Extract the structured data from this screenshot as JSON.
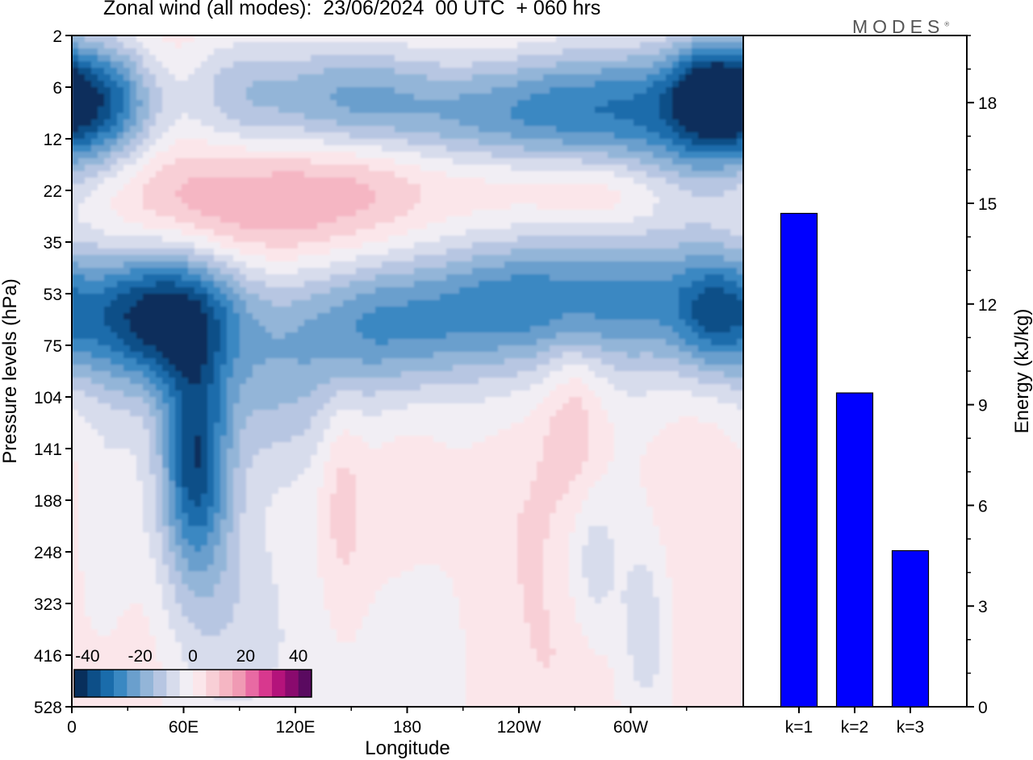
{
  "header": {
    "title": "Zonal wind (all modes):  23/06/2024  00 UTC  + 060 hrs",
    "logo": "MODES",
    "logo_mark": "®"
  },
  "chart_data": [
    {
      "type": "heatmap",
      "title": "Zonal wind (all modes):  23/06/2024  00 UTC  + 060 hrs",
      "xlabel": "Longitude",
      "ylabel": "Pressure levels (hPa)",
      "x_ticks": [
        "0",
        "60E",
        "120E",
        "180",
        "120W",
        "60W"
      ],
      "y_ticks": [
        "2",
        "6",
        "12",
        "22",
        "35",
        "53",
        "75",
        "104",
        "141",
        "188",
        "248",
        "323",
        "416",
        "528"
      ],
      "xlim": [
        0,
        360
      ],
      "colorbar": {
        "labels": [
          "-40",
          "-20",
          "0",
          "20",
          "40"
        ],
        "range": [
          -45,
          45
        ],
        "step": 5,
        "colors": [
          "#082f5c",
          "#0d4f88",
          "#1a6cab",
          "#3a88c2",
          "#6a9fcd",
          "#93b5d8",
          "#b7c6e2",
          "#d7dcec",
          "#f1eef4",
          "#fbe6ea",
          "#f8cfd6",
          "#f5b6c3",
          "#f09ab4",
          "#e86aa3",
          "#d8388e",
          "#b4137b",
          "#8a0a6e",
          "#5a0a60"
        ]
      },
      "features": [
        {
          "lon": 20,
          "lev": 1.2,
          "v": -30,
          "sx": 20,
          "sy": 0.9
        },
        {
          "lon": 85,
          "lev": 1.0,
          "v": -15,
          "sx": 22,
          "sy": 0.9
        },
        {
          "lon": 145,
          "lev": 1.2,
          "v": -28,
          "sx": 38,
          "sy": 0.9
        },
        {
          "lon": 225,
          "lev": 1.5,
          "v": -18,
          "sx": 45,
          "sy": 0.9
        },
        {
          "lon": 300,
          "lev": 1.3,
          "v": -28,
          "sx": 50,
          "sy": 0.9
        },
        {
          "lon": 345,
          "lev": 1.1,
          "v": -35,
          "sx": 18,
          "sy": 0.8
        },
        {
          "lon": 120,
          "lev": 0.5,
          "v": 10,
          "sx": 180,
          "sy": 1.0
        },
        {
          "lon": 340,
          "lev": 2.6,
          "v": -10,
          "sx": 30,
          "sy": 1.0
        },
        {
          "lon": 95,
          "lev": 3.3,
          "v": 12,
          "sx": 60,
          "sy": 0.9
        },
        {
          "lon": 155,
          "lev": 2.5,
          "v": 8,
          "sx": 30,
          "sy": 0.8
        },
        {
          "lon": 240,
          "lev": 2.8,
          "v": 8,
          "sx": 40,
          "sy": 0.6
        },
        {
          "lon": 290,
          "lev": 3.1,
          "v": 7,
          "sx": 25,
          "sy": 0.5
        },
        {
          "lon": 75,
          "lev": 3.2,
          "v": 6,
          "sx": 80,
          "sy": 1.2
        },
        {
          "lon": 35,
          "lev": 5.5,
          "v": -25,
          "sx": 30,
          "sy": 1.0
        },
        {
          "lon": 60,
          "lev": 5.3,
          "v": -20,
          "sx": 25,
          "sy": 0.9
        },
        {
          "lon": 165,
          "lev": 5.6,
          "v": -20,
          "sx": 35,
          "sy": 0.9
        },
        {
          "lon": 230,
          "lev": 5.2,
          "v": -15,
          "sx": 30,
          "sy": 0.8
        },
        {
          "lon": 300,
          "lev": 5.1,
          "v": -22,
          "sx": 45,
          "sy": 0.9
        },
        {
          "lon": 345,
          "lev": 5.4,
          "v": -18,
          "sx": 15,
          "sy": 0.8
        },
        {
          "lon": 180,
          "lev": 4.5,
          "v": -4,
          "sx": 180,
          "sy": 1.2
        },
        {
          "lon": 180,
          "lev": 6.3,
          "v": -4,
          "sx": 180,
          "sy": 1.1
        },
        {
          "lon": 66,
          "lev": 8.2,
          "v": -35,
          "sx": 13,
          "sy": 1.5
        },
        {
          "lon": 110,
          "lev": 7.0,
          "v": -10,
          "sx": 25,
          "sy": 1.2
        },
        {
          "lon": 70,
          "lev": 10.5,
          "v": -8,
          "sx": 25,
          "sy": 1.6
        },
        {
          "lon": 145,
          "lev": 8.9,
          "v": 8,
          "sx": 8,
          "sy": 1.5
        },
        {
          "lon": 180,
          "lev": 9.0,
          "v": 4,
          "sx": 18,
          "sy": 1.8
        },
        {
          "lon": 270,
          "lev": 7.3,
          "v": 10,
          "sx": 12,
          "sy": 1.2
        },
        {
          "lon": 245,
          "lev": 9.5,
          "v": 5,
          "sx": 20,
          "sy": 1.8
        },
        {
          "lon": 280,
          "lev": 10.2,
          "v": -9,
          "sx": 10,
          "sy": 1.2
        },
        {
          "lon": 308,
          "lev": 11.5,
          "v": -10,
          "sx": 10,
          "sy": 1.3
        },
        {
          "lon": 335,
          "lev": 9.5,
          "v": 5,
          "sx": 18,
          "sy": 2.5
        },
        {
          "lon": 40,
          "lev": 11.5,
          "v": 5,
          "sx": 18,
          "sy": 1.5
        },
        {
          "lon": 185,
          "lev": 11.8,
          "v": -5,
          "sx": 15,
          "sy": 1.5
        },
        {
          "lon": 20,
          "lev": 9.5,
          "v": -5,
          "sx": 10,
          "sy": 1.5
        },
        {
          "lon": 100,
          "lev": 12.0,
          "v": -4,
          "sx": 30,
          "sy": 1.5
        },
        {
          "lon": 265,
          "lev": 12.3,
          "v": 4,
          "sx": 25,
          "sy": 1.2
        }
      ]
    },
    {
      "type": "bar",
      "categories": [
        "k=1",
        "k=2",
        "k=3"
      ],
      "values": [
        14.7,
        9.35,
        4.65
      ],
      "ylabel": "Energy (kJ/kg)",
      "ylim": [
        0,
        20
      ],
      "y_ticks": [
        0,
        3,
        6,
        9,
        12,
        15,
        18
      ],
      "bar_color": "#0000ff"
    }
  ]
}
